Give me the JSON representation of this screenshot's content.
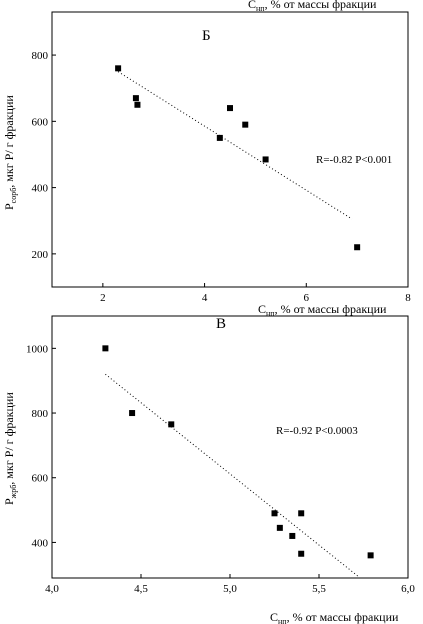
{
  "top_fragment": {
    "label": "C",
    "label_sub": "нп",
    "label_rest": ", % от массы фракции"
  },
  "chart_data": [
    {
      "type": "scatter",
      "panel_letter": "Б",
      "title": "",
      "xlabel": {
        "main": "C",
        "sub": "нп",
        "rest": ", % от массы фракции"
      },
      "ylabel": {
        "main": "P",
        "sub": "сорб",
        "rest": ", мкг P/ г фракции"
      },
      "xlim": [
        1,
        8
      ],
      "ylim": [
        100,
        930
      ],
      "xticks": [
        2,
        4,
        6,
        8
      ],
      "yticks": [
        200,
        400,
        600,
        800
      ],
      "tick_labels_x": [
        "2",
        "4",
        "6",
        "8"
      ],
      "tick_labels_y": [
        "200",
        "400",
        "600",
        "800"
      ],
      "points": [
        {
          "x": 2.3,
          "y": 760
        },
        {
          "x": 2.65,
          "y": 670
        },
        {
          "x": 2.68,
          "y": 650
        },
        {
          "x": 4.3,
          "y": 550
        },
        {
          "x": 4.5,
          "y": 640
        },
        {
          "x": 4.8,
          "y": 590
        },
        {
          "x": 5.2,
          "y": 485
        },
        {
          "x": 7.0,
          "y": 220
        }
      ],
      "trendline": {
        "style": "dotted",
        "x": [
          2.3,
          6.9
        ],
        "y": [
          750,
          305
        ]
      },
      "annotation": "R=-0.82   P<0.001",
      "grid": false,
      "legend": "none"
    },
    {
      "type": "scatter",
      "panel_letter": "В",
      "title": "",
      "xlabel": {
        "main": "C",
        "sub": "нп",
        "rest": ", % от массы фракции"
      },
      "ylabel": {
        "main": "P",
        "sub": "жрб",
        "rest": ", мкг P/ г фракции"
      },
      "xlim": [
        4.0,
        6.0
      ],
      "ylim": [
        290,
        1100
      ],
      "xticks": [
        4.0,
        4.5,
        5.0,
        5.5,
        6.0
      ],
      "yticks": [
        400,
        600,
        800,
        1000
      ],
      "tick_labels_x": [
        "4,0",
        "4,5",
        "5,0",
        "5,5",
        "6,0"
      ],
      "tick_labels_y": [
        "400",
        "600",
        "800",
        "1000"
      ],
      "points": [
        {
          "x": 4.3,
          "y": 1000
        },
        {
          "x": 4.45,
          "y": 800
        },
        {
          "x": 4.67,
          "y": 765
        },
        {
          "x": 5.25,
          "y": 490
        },
        {
          "x": 5.28,
          "y": 445
        },
        {
          "x": 5.35,
          "y": 420
        },
        {
          "x": 5.4,
          "y": 490
        },
        {
          "x": 5.4,
          "y": 365
        },
        {
          "x": 5.79,
          "y": 360
        }
      ],
      "trendline": {
        "style": "dotted",
        "x": [
          4.3,
          5.72
        ],
        "y": [
          920,
          295
        ]
      },
      "annotation": "R=-0.92   P<0.0003",
      "grid": false,
      "legend": "none"
    }
  ]
}
